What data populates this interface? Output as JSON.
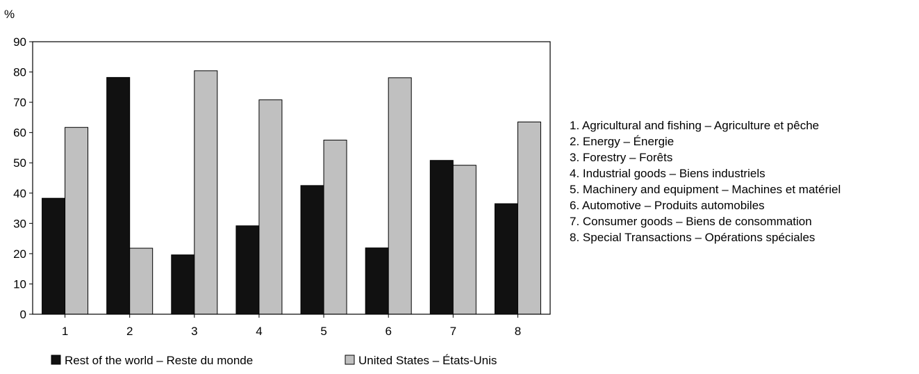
{
  "chart_data": {
    "type": "bar",
    "ylabel": "%",
    "ylim": [
      0,
      90
    ],
    "yticks": [
      0,
      10,
      20,
      30,
      40,
      50,
      60,
      70,
      80,
      90
    ],
    "grid": false,
    "categories": [
      "1",
      "2",
      "3",
      "4",
      "5",
      "6",
      "7",
      "8"
    ],
    "series": [
      {
        "name": "Rest of the world – Reste du monde",
        "color": "#111111",
        "values": [
          38.3,
          78.2,
          19.6,
          29.2,
          42.5,
          21.9,
          50.8,
          36.5
        ]
      },
      {
        "name": "United States – États-Unis",
        "color": "#c0c0c0",
        "values": [
          61.7,
          21.8,
          80.4,
          70.8,
          57.5,
          78.1,
          49.2,
          63.5
        ]
      }
    ],
    "legend_position": "bottom",
    "category_notes": [
      "1. Agricultural and fishing – Agriculture et pêche",
      "2. Energy – Énergie",
      "3. Forestry –  Forêts",
      "4. Industrial goods – Biens industriels",
      "5. Machinery and equipment – Machines et matériel",
      "6. Automotive – Produits automobiles",
      "7. Consumer goods –  Biens de consommation",
      "8. Special Transactions – Opérations spéciales"
    ]
  }
}
